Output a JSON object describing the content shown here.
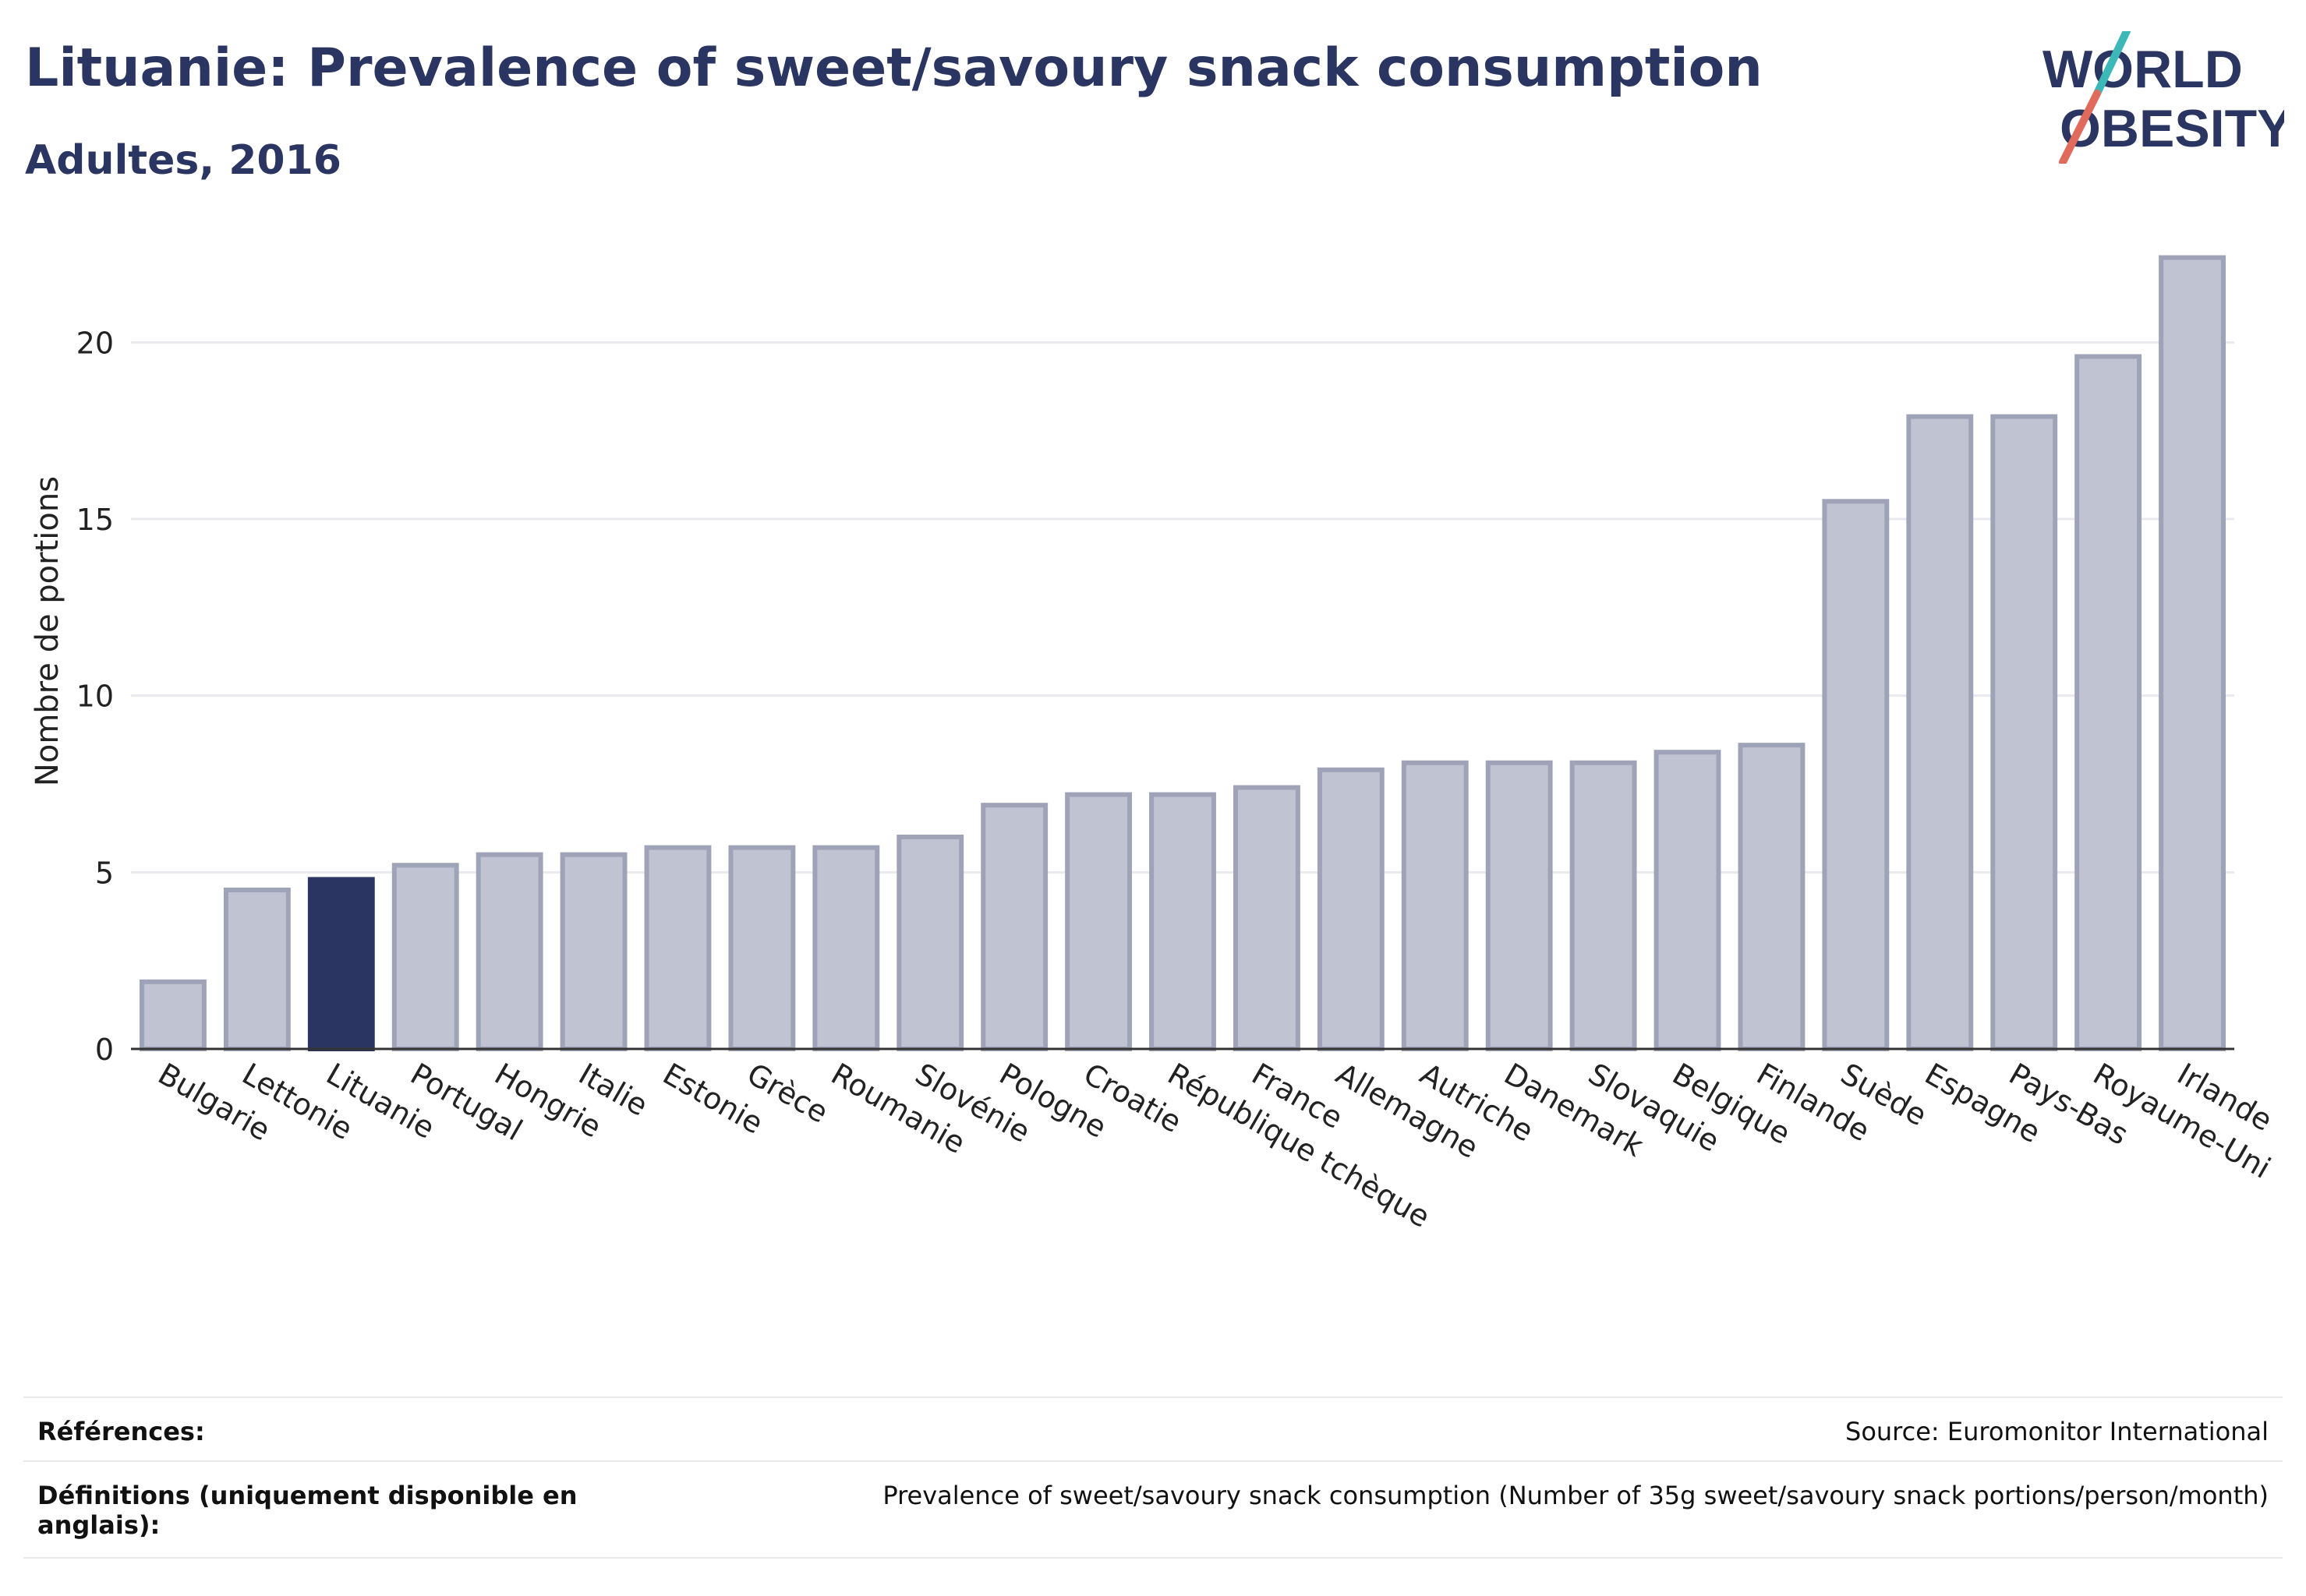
{
  "header": {
    "title": "Lituanie: Prevalence of sweet/savoury snack consumption",
    "subtitle": "Adultes, 2016",
    "logo_line1": "WORLD",
    "logo_line2": "OBESITY"
  },
  "colors": {
    "accent": "#2b3561",
    "bar": "#c0c3d1",
    "bar_edge": "#9ea3b8",
    "logo_teal": "#3cb8b8",
    "logo_coral": "#e06b5c"
  },
  "chart_data": {
    "type": "bar",
    "ylabel": "Nombre de portions",
    "xlabel": "",
    "ylim": [
      0,
      22.5
    ],
    "yticks": [
      0,
      5,
      10,
      15,
      20
    ],
    "grid": true,
    "highlight": "Lituanie",
    "categories": [
      "Bulgarie",
      "Lettonie",
      "Lituanie",
      "Portugal",
      "Hongrie",
      "Italie",
      "Estonie",
      "Grèce",
      "Roumanie",
      "Slovénie",
      "Pologne",
      "Croatie",
      "République tchèque",
      "France",
      "Allemagne",
      "Autriche",
      "Danemark",
      "Slovaquie",
      "Belgique",
      "Finlande",
      "Suède",
      "Espagne",
      "Pays-Bas",
      "Royaume-Uni",
      "Irlande"
    ],
    "values": [
      1.9,
      4.5,
      4.8,
      5.2,
      5.5,
      5.5,
      5.7,
      5.7,
      5.7,
      6.0,
      6.9,
      7.2,
      7.2,
      7.4,
      7.9,
      8.1,
      8.1,
      8.1,
      8.4,
      8.6,
      15.5,
      17.9,
      17.9,
      19.6,
      22.4
    ]
  },
  "footer": {
    "references_label": "Références:",
    "references_value": "Source: Euromonitor International",
    "definitions_label": "Définitions (uniquement disponible en anglais):",
    "definitions_value": "Prevalence of sweet/savoury snack consumption (Number of 35g sweet/savoury snack portions/person/month)"
  }
}
